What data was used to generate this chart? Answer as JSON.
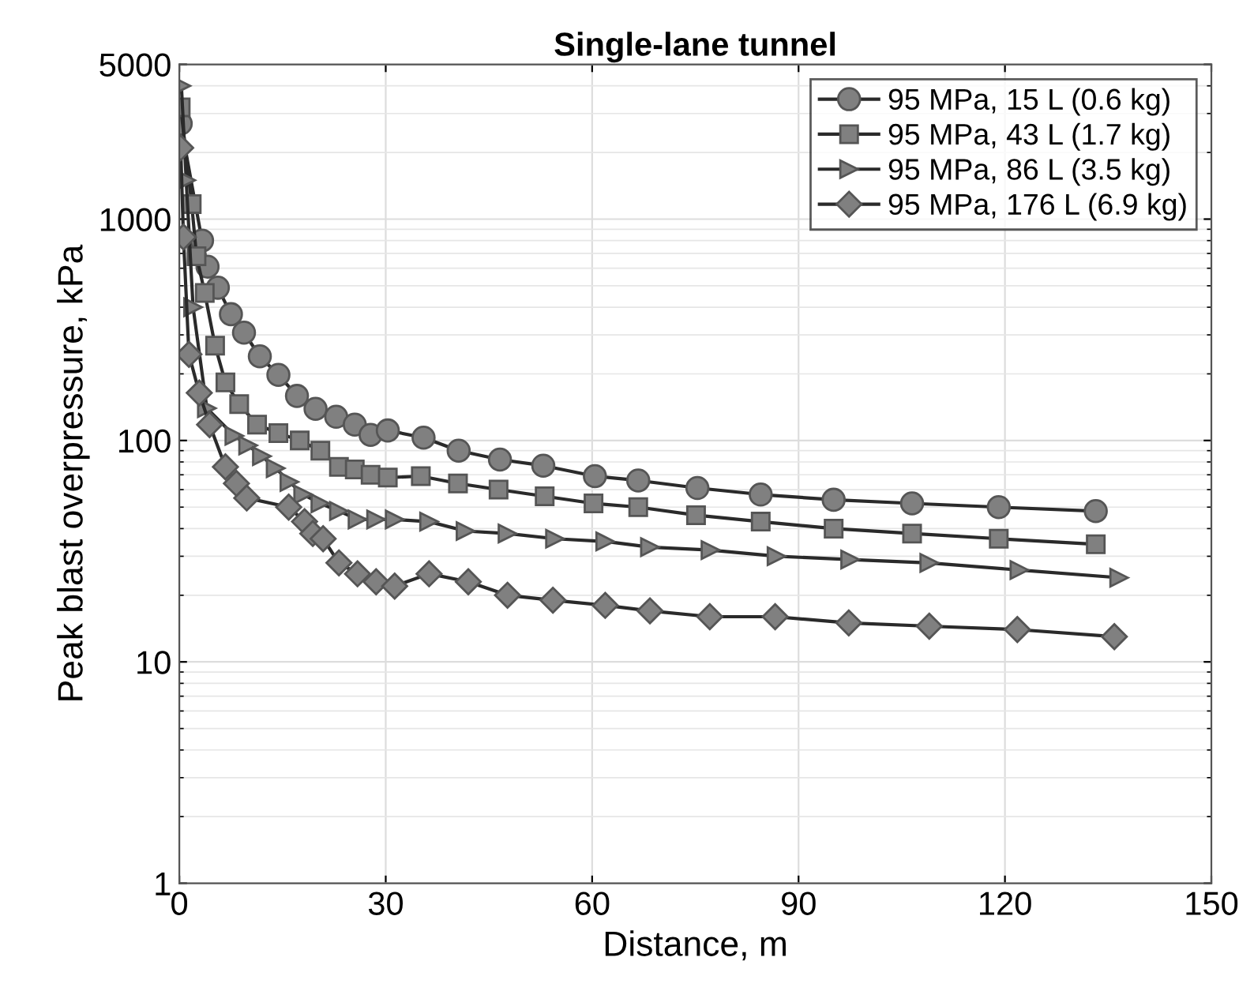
{
  "chart_data": {
    "type": "line",
    "title": "Single-lane tunnel",
    "xlabel": "Distance, m",
    "ylabel": "Peak blast overpressure, kPa",
    "log": "y",
    "xlim": [
      0,
      150
    ],
    "xticks": [
      0,
      30,
      60,
      90,
      120,
      150
    ],
    "ylim": [
      1,
      5000
    ],
    "yticks": [
      1,
      10,
      100,
      1000,
      5000
    ],
    "grid": true,
    "legend": "top right",
    "line_style": "solid",
    "series": [
      {
        "name": "95 MPa, 15 L (0.6 kg)",
        "color": "#808080",
        "marker": "circle",
        "x": [
          0.2,
          3.3,
          4.1,
          5.6,
          7.5,
          9.4,
          11.7,
          14.4,
          17.1,
          19.8,
          22.8,
          25.5,
          27.8,
          30.3,
          35.5,
          40.6,
          46.6,
          52.9,
          60.4,
          66.7,
          75.3,
          84.5,
          95.1,
          106.5,
          119.1,
          133.2
        ],
        "values": [
          2700,
          800,
          610,
          490,
          372,
          307,
          240,
          198,
          159,
          139,
          128,
          118,
          106,
          111,
          103,
          90,
          82,
          77,
          69,
          66,
          61,
          57,
          54,
          52,
          50,
          48
        ]
      },
      {
        "name": "95 MPa, 43 L (1.7 kg)",
        "color": "#808080",
        "marker": "square",
        "x": [
          0.2,
          1.8,
          2.5,
          3.7,
          5.2,
          6.7,
          8.7,
          11.3,
          14.4,
          17.5,
          20.5,
          23.2,
          25.5,
          27.8,
          30.3,
          35.1,
          40.5,
          46.4,
          53.1,
          60.2,
          66.7,
          75.1,
          84.5,
          95.1,
          106.5,
          119.1,
          133.2
        ],
        "values": [
          3200,
          1170,
          680,
          464,
          268,
          183,
          146,
          118,
          108,
          100,
          90,
          76,
          74,
          70,
          68,
          69,
          64,
          60,
          56,
          52,
          50,
          46,
          43,
          40,
          38,
          36,
          34
        ]
      },
      {
        "name": "95 MPa, 86 L (3.5 kg)",
        "color": "#808080",
        "marker": "triangle",
        "x": [
          0.3,
          1.0,
          2.0,
          4.0,
          8.0,
          10.0,
          12.0,
          14.0,
          16.0,
          18.0,
          20.5,
          23.2,
          25.9,
          28.6,
          31.3,
          36.3,
          41.6,
          47.7,
          54.6,
          61.9,
          68.4,
          77.2,
          86.8,
          97.5,
          109.0,
          122.1,
          136.6
        ],
        "values": [
          4000,
          1500,
          400,
          140,
          105,
          95,
          85,
          75,
          65,
          57,
          52,
          48,
          44,
          44,
          44,
          43,
          39,
          38,
          36,
          35,
          33,
          32,
          30,
          29,
          28,
          26,
          24
        ]
      },
      {
        "name": "95 MPa, 176 L (6.9 kg)",
        "color": "#808080",
        "marker": "diamond",
        "x": [
          0.2,
          0.6,
          1.4,
          2.9,
          4.4,
          6.7,
          8.3,
          9.8,
          15.9,
          18.2,
          19.4,
          20.9,
          23.2,
          25.9,
          28.6,
          31.3,
          36.3,
          42.0,
          47.7,
          54.3,
          61.9,
          68.4,
          77.1,
          86.6,
          97.3,
          109.0,
          121.8,
          135.9
        ],
        "values": [
          2100,
          830,
          245,
          164,
          118,
          76,
          64,
          55,
          50,
          43,
          38,
          36,
          28,
          25,
          23,
          22,
          25,
          23,
          20,
          19,
          18,
          17,
          16,
          16,
          15,
          14.5,
          14,
          13
        ]
      }
    ]
  }
}
